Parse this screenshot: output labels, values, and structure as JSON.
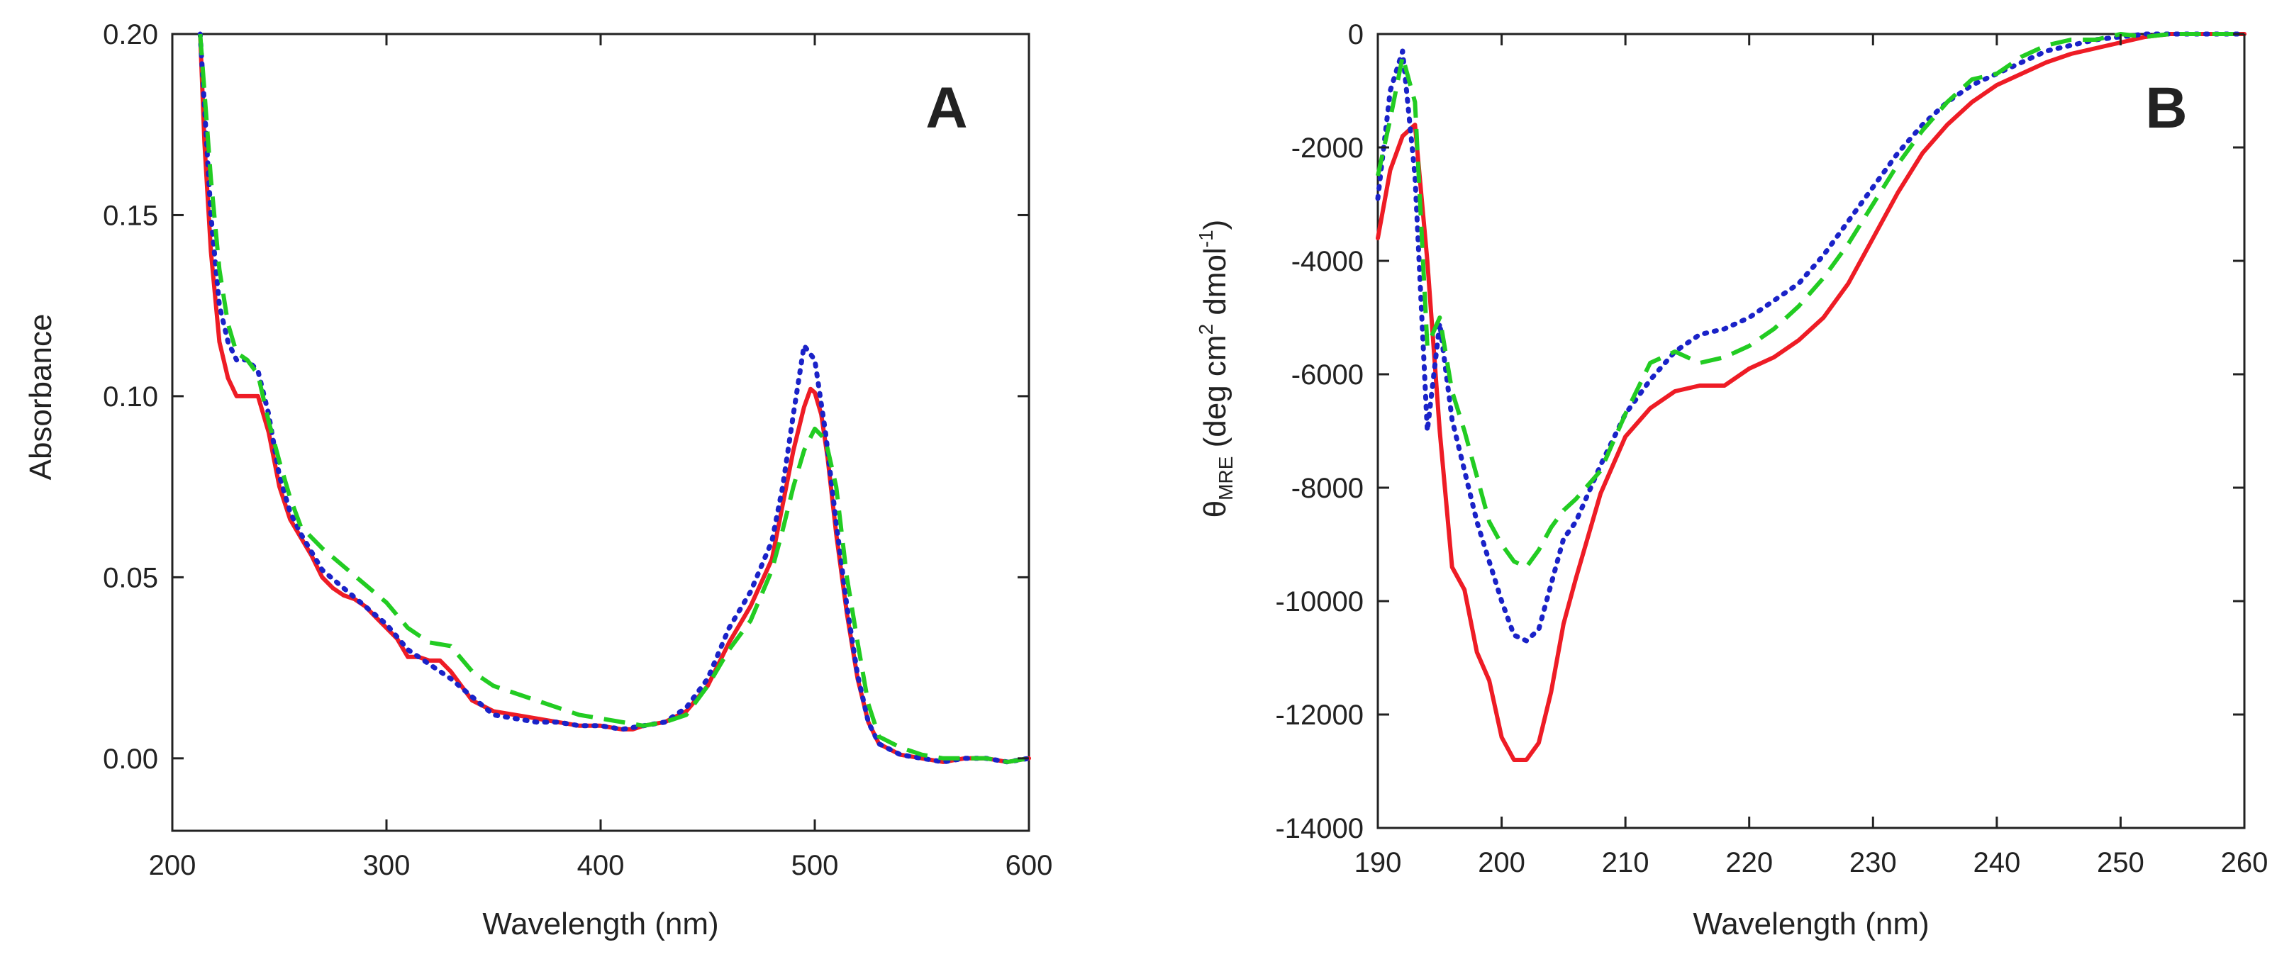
{
  "chart_data": [
    {
      "type": "line",
      "panel": "A",
      "title": "",
      "xlabel": "Wavelength (nm)",
      "ylabel": "Absorbance",
      "xlim": [
        200,
        600
      ],
      "ylim": [
        -0.02,
        0.2
      ],
      "xticks": [
        200,
        300,
        400,
        500,
        600
      ],
      "xtick_labels": [
        "200",
        "300",
        "400",
        "500",
        "600"
      ],
      "yticks": [
        0,
        0.05,
        0.1,
        0.15,
        0.2
      ],
      "ytick_labels": [
        "0.00",
        "0.05",
        "0.10",
        "0.15",
        "0.20"
      ],
      "grid": false,
      "series": [
        {
          "name": "solid",
          "color": "#ee1c25",
          "style": "solid",
          "x": [
            213,
            215,
            218,
            222,
            226,
            230,
            235,
            240,
            245,
            250,
            255,
            260,
            265,
            270,
            275,
            280,
            285,
            290,
            295,
            300,
            305,
            310,
            315,
            320,
            325,
            330,
            335,
            340,
            350,
            360,
            370,
            380,
            390,
            400,
            410,
            415,
            420,
            430,
            440,
            450,
            460,
            470,
            480,
            485,
            490,
            495,
            498,
            500,
            503,
            506,
            510,
            515,
            520,
            525,
            530,
            540,
            550,
            560,
            570,
            580,
            590,
            600
          ],
          "y": [
            0.2,
            0.17,
            0.14,
            0.115,
            0.105,
            0.1,
            0.1,
            0.1,
            0.09,
            0.075,
            0.066,
            0.061,
            0.056,
            0.05,
            0.047,
            0.045,
            0.044,
            0.042,
            0.039,
            0.036,
            0.033,
            0.028,
            0.028,
            0.027,
            0.027,
            0.024,
            0.02,
            0.016,
            0.013,
            0.012,
            0.011,
            0.01,
            0.009,
            0.009,
            0.008,
            0.008,
            0.009,
            0.01,
            0.013,
            0.02,
            0.032,
            0.042,
            0.055,
            0.07,
            0.085,
            0.097,
            0.102,
            0.101,
            0.095,
            0.083,
            0.062,
            0.04,
            0.022,
            0.01,
            0.004,
            0.001,
            0.0,
            -0.001,
            0.0,
            0.0,
            -0.001,
            0.0
          ]
        },
        {
          "name": "dotted",
          "color": "#1a22c8",
          "style": "dotted",
          "x": [
            213,
            218,
            222,
            226,
            230,
            235,
            240,
            245,
            250,
            255,
            260,
            265,
            270,
            280,
            290,
            300,
            310,
            320,
            330,
            340,
            350,
            360,
            370,
            380,
            390,
            400,
            410,
            420,
            430,
            440,
            450,
            460,
            470,
            480,
            485,
            490,
            495,
            500,
            505,
            510,
            515,
            520,
            525,
            530,
            540,
            550,
            560,
            570,
            580,
            590,
            600
          ],
          "y": [
            0.2,
            0.15,
            0.125,
            0.115,
            0.11,
            0.11,
            0.107,
            0.095,
            0.078,
            0.068,
            0.062,
            0.057,
            0.052,
            0.047,
            0.042,
            0.037,
            0.03,
            0.026,
            0.022,
            0.017,
            0.012,
            0.011,
            0.01,
            0.01,
            0.009,
            0.009,
            0.008,
            0.009,
            0.01,
            0.014,
            0.022,
            0.036,
            0.046,
            0.06,
            0.075,
            0.095,
            0.114,
            0.11,
            0.09,
            0.065,
            0.042,
            0.023,
            0.01,
            0.004,
            0.001,
            0.0,
            -0.001,
            0.0,
            0.0,
            -0.001,
            0.0
          ]
        },
        {
          "name": "dashed",
          "color": "#22cc22",
          "style": "dashed",
          "x": [
            213,
            218,
            222,
            226,
            230,
            235,
            240,
            245,
            250,
            255,
            260,
            270,
            280,
            290,
            300,
            310,
            320,
            330,
            340,
            350,
            360,
            370,
            380,
            390,
            400,
            410,
            420,
            430,
            440,
            450,
            460,
            470,
            480,
            485,
            490,
            495,
            500,
            505,
            510,
            515,
            520,
            525,
            530,
            540,
            550,
            560,
            570,
            580,
            590,
            600
          ],
          "y": [
            0.2,
            0.16,
            0.135,
            0.12,
            0.112,
            0.11,
            0.106,
            0.093,
            0.082,
            0.072,
            0.064,
            0.058,
            0.053,
            0.048,
            0.043,
            0.036,
            0.032,
            0.031,
            0.024,
            0.02,
            0.018,
            0.016,
            0.014,
            0.012,
            0.011,
            0.01,
            0.009,
            0.01,
            0.012,
            0.02,
            0.03,
            0.038,
            0.052,
            0.063,
            0.075,
            0.085,
            0.091,
            0.088,
            0.075,
            0.05,
            0.032,
            0.015,
            0.006,
            0.003,
            0.001,
            0.0,
            0.0,
            0.0,
            -0.001,
            0.0
          ]
        }
      ]
    },
    {
      "type": "line",
      "panel": "B",
      "title": "",
      "xlabel": "Wavelength (nm)",
      "ylabel_main": "θ",
      "ylabel_sub": "MRE",
      "ylabel_rest": " (deg cm",
      "ylabel_sup1": "2",
      "ylabel_rest2": " dmol",
      "ylabel_sup2": "-1",
      "ylabel_end": ")",
      "xlim": [
        190,
        260
      ],
      "ylim": [
        -14000,
        0
      ],
      "xticks": [
        190,
        200,
        210,
        220,
        230,
        240,
        250,
        260
      ],
      "xtick_labels": [
        "190",
        "200",
        "210",
        "220",
        "230",
        "240",
        "250",
        "260"
      ],
      "yticks": [
        0,
        -2000,
        -4000,
        -6000,
        -8000,
        -10000,
        -12000,
        -14000
      ],
      "ytick_labels": [
        "0",
        "-2000",
        "-4000",
        "-6000",
        "-8000",
        "-10000",
        "-12000",
        "-14000"
      ],
      "grid": false,
      "series": [
        {
          "name": "solid",
          "color": "#ee1c25",
          "style": "solid",
          "x": [
            190,
            191,
            192,
            193,
            194,
            195,
            196,
            197,
            198,
            199,
            200,
            201,
            202,
            203,
            204,
            205,
            206,
            208,
            210,
            212,
            214,
            216,
            218,
            220,
            222,
            224,
            226,
            228,
            230,
            232,
            234,
            236,
            238,
            240,
            242,
            244,
            246,
            248,
            250,
            252,
            254,
            256,
            258,
            260
          ],
          "y": [
            -3600,
            -2400,
            -1800,
            -1600,
            -4000,
            -7000,
            -9400,
            -9800,
            -10900,
            -11400,
            -12400,
            -12800,
            -12800,
            -12500,
            -11600,
            -10400,
            -9600,
            -8100,
            -7100,
            -6600,
            -6300,
            -6200,
            -6200,
            -5900,
            -5700,
            -5400,
            -5000,
            -4400,
            -3600,
            -2800,
            -2100,
            -1600,
            -1200,
            -900,
            -700,
            -500,
            -350,
            -250,
            -150,
            -50,
            0,
            0,
            0,
            0
          ]
        },
        {
          "name": "dotted",
          "color": "#1a22c8",
          "style": "dotted",
          "x": [
            190,
            191,
            192,
            193,
            194,
            195,
            196,
            197,
            198,
            199,
            200,
            201,
            202,
            203,
            204,
            205,
            206,
            208,
            210,
            212,
            214,
            216,
            218,
            220,
            222,
            224,
            226,
            228,
            230,
            232,
            234,
            236,
            238,
            240,
            242,
            244,
            246,
            248,
            250,
            252,
            254,
            256,
            258,
            260
          ],
          "y": [
            -2900,
            -1000,
            -300,
            -2500,
            -7000,
            -5100,
            -6800,
            -7700,
            -8600,
            -9300,
            -10000,
            -10600,
            -10700,
            -10500,
            -9700,
            -8900,
            -8600,
            -7600,
            -6700,
            -6100,
            -5600,
            -5300,
            -5200,
            -5000,
            -4700,
            -4400,
            -3900,
            -3300,
            -2700,
            -2100,
            -1600,
            -1200,
            -900,
            -700,
            -500,
            -300,
            -200,
            -100,
            -50,
            0,
            0,
            0,
            0,
            0
          ]
        },
        {
          "name": "dashed",
          "color": "#22cc22",
          "style": "dashed",
          "x": [
            190,
            191,
            192,
            193,
            194,
            195,
            196,
            197,
            198,
            199,
            200,
            201,
            202,
            203,
            204,
            205,
            206,
            208,
            210,
            212,
            214,
            216,
            218,
            220,
            222,
            224,
            226,
            228,
            230,
            232,
            234,
            236,
            238,
            240,
            242,
            244,
            246,
            248,
            250,
            252,
            254,
            256,
            258,
            260
          ],
          "y": [
            -2500,
            -1500,
            -400,
            -1200,
            -5500,
            -5000,
            -6300,
            -7000,
            -7800,
            -8600,
            -9000,
            -9300,
            -9400,
            -9100,
            -8700,
            -8400,
            -8200,
            -7700,
            -6700,
            -5800,
            -5600,
            -5800,
            -5700,
            -5500,
            -5200,
            -4800,
            -4300,
            -3700,
            -3000,
            -2300,
            -1700,
            -1200,
            -800,
            -700,
            -400,
            -200,
            -100,
            -100,
            0,
            -50,
            0,
            0,
            0,
            0
          ]
        }
      ]
    }
  ]
}
